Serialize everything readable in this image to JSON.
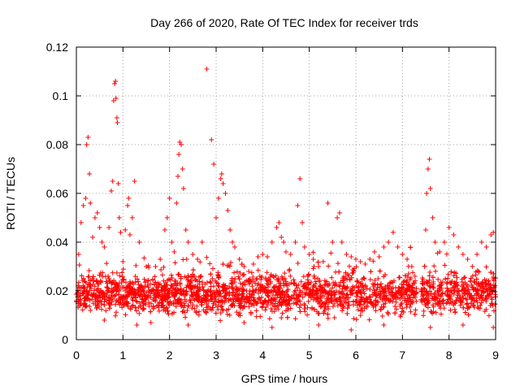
{
  "chart_data": {
    "type": "scatter",
    "title": "Day 266 of 2020, Rate Of TEC Index for receiver trds",
    "xlabel": "GPS time / hours",
    "ylabel": "ROTI / TECUs",
    "xlim": [
      0,
      9
    ],
    "ylim": [
      0,
      0.12
    ],
    "x_ticks": [
      "0",
      "1",
      "2",
      "3",
      "4",
      "5",
      "6",
      "7",
      "8",
      "9"
    ],
    "y_ticks": [
      "0",
      "0.02",
      "0.04",
      "0.06",
      "0.08",
      "0.1",
      "0.12"
    ],
    "grid": true,
    "marker": "+",
    "color": "#ff0000",
    "data_gap_hours": [
      7.3,
      7.4
    ],
    "series": [
      {
        "name": "ROTI",
        "points": [
          [
            0.05,
            0.035
          ],
          [
            0.1,
            0.048
          ],
          [
            0.15,
            0.055
          ],
          [
            0.2,
            0.058
          ],
          [
            0.22,
            0.08
          ],
          [
            0.25,
            0.083
          ],
          [
            0.28,
            0.068
          ],
          [
            0.3,
            0.056
          ],
          [
            0.35,
            0.042
          ],
          [
            0.4,
            0.05
          ],
          [
            0.45,
            0.052
          ],
          [
            0.5,
            0.046
          ],
          [
            0.55,
            0.04
          ],
          [
            0.6,
            0.038
          ],
          [
            0.7,
            0.046
          ],
          [
            0.75,
            0.061
          ],
          [
            0.78,
            0.065
          ],
          [
            0.8,
            0.098
          ],
          [
            0.82,
            0.105
          ],
          [
            0.84,
            0.106
          ],
          [
            0.85,
            0.099
          ],
          [
            0.87,
            0.091
          ],
          [
            0.88,
            0.089
          ],
          [
            0.9,
            0.064
          ],
          [
            0.92,
            0.05
          ],
          [
            0.95,
            0.044
          ],
          [
            1.0,
            0.032
          ],
          [
            1.05,
            0.045
          ],
          [
            1.1,
            0.055
          ],
          [
            1.12,
            0.058
          ],
          [
            1.15,
            0.043
          ],
          [
            1.2,
            0.05
          ],
          [
            1.25,
            0.065
          ],
          [
            1.35,
            0.04
          ],
          [
            1.5,
            0.03
          ],
          [
            1.7,
            0.03
          ],
          [
            1.8,
            0.033
          ],
          [
            1.9,
            0.045
          ],
          [
            1.95,
            0.05
          ],
          [
            2.0,
            0.058
          ],
          [
            2.05,
            0.04
          ],
          [
            2.1,
            0.036
          ],
          [
            2.15,
            0.056
          ],
          [
            2.18,
            0.067
          ],
          [
            2.2,
            0.076
          ],
          [
            2.22,
            0.081
          ],
          [
            2.25,
            0.08
          ],
          [
            2.28,
            0.07
          ],
          [
            2.3,
            0.062
          ],
          [
            2.35,
            0.045
          ],
          [
            2.4,
            0.04
          ],
          [
            2.5,
            0.035
          ],
          [
            2.6,
            0.033
          ],
          [
            2.7,
            0.04
          ],
          [
            2.8,
            0.111
          ],
          [
            2.9,
            0.082
          ],
          [
            2.95,
            0.072
          ],
          [
            3.0,
            0.05
          ],
          [
            3.05,
            0.058
          ],
          [
            3.1,
            0.066
          ],
          [
            3.12,
            0.068
          ],
          [
            3.15,
            0.064
          ],
          [
            3.2,
            0.06
          ],
          [
            3.25,
            0.053
          ],
          [
            3.3,
            0.045
          ],
          [
            3.35,
            0.04
          ],
          [
            3.4,
            0.038
          ],
          [
            3.5,
            0.033
          ],
          [
            3.6,
            0.03
          ],
          [
            3.7,
            0.028
          ],
          [
            3.8,
            0.031
          ],
          [
            3.9,
            0.034
          ],
          [
            4.0,
            0.035
          ],
          [
            4.1,
            0.034
          ],
          [
            4.2,
            0.04
          ],
          [
            4.3,
            0.046
          ],
          [
            4.35,
            0.048
          ],
          [
            4.4,
            0.042
          ],
          [
            4.45,
            0.04
          ],
          [
            4.5,
            0.036
          ],
          [
            4.6,
            0.035
          ],
          [
            4.7,
            0.04
          ],
          [
            4.75,
            0.055
          ],
          [
            4.8,
            0.066
          ],
          [
            4.85,
            0.048
          ],
          [
            4.9,
            0.038
          ],
          [
            5.0,
            0.035
          ],
          [
            5.1,
            0.03
          ],
          [
            5.2,
            0.03
          ],
          [
            5.3,
            0.032
          ],
          [
            5.4,
            0.056
          ],
          [
            5.5,
            0.04
          ],
          [
            5.6,
            0.05
          ],
          [
            5.65,
            0.052
          ],
          [
            5.7,
            0.04
          ],
          [
            5.8,
            0.035
          ],
          [
            5.9,
            0.034
          ],
          [
            6.0,
            0.033
          ],
          [
            6.1,
            0.032
          ],
          [
            6.2,
            0.031
          ],
          [
            6.3,
            0.033
          ],
          [
            6.4,
            0.036
          ],
          [
            6.5,
            0.034
          ],
          [
            6.6,
            0.038
          ],
          [
            6.7,
            0.04
          ],
          [
            6.8,
            0.044
          ],
          [
            6.9,
            0.038
          ],
          [
            7.0,
            0.035
          ],
          [
            7.1,
            0.033
          ],
          [
            7.2,
            0.03
          ],
          [
            7.5,
            0.045
          ],
          [
            7.52,
            0.06
          ],
          [
            7.55,
            0.07
          ],
          [
            7.58,
            0.074
          ],
          [
            7.6,
            0.062
          ],
          [
            7.65,
            0.05
          ],
          [
            7.7,
            0.04
          ],
          [
            7.8,
            0.036
          ],
          [
            7.9,
            0.04
          ],
          [
            8.0,
            0.046
          ],
          [
            8.1,
            0.043
          ],
          [
            8.2,
            0.038
          ],
          [
            8.3,
            0.035
          ],
          [
            8.4,
            0.033
          ],
          [
            8.5,
            0.03
          ],
          [
            8.6,
            0.035
          ],
          [
            8.7,
            0.04
          ],
          [
            8.8,
            0.038
          ],
          [
            8.9,
            0.043
          ],
          [
            8.95,
            0.044
          ],
          [
            0.3,
            0.012
          ],
          [
            0.6,
            0.008
          ],
          [
            1.3,
            0.006
          ],
          [
            1.6,
            0.007
          ],
          [
            2.4,
            0.006
          ],
          [
            3.6,
            0.007
          ],
          [
            4.2,
            0.005
          ],
          [
            5.2,
            0.006
          ],
          [
            5.9,
            0.004
          ],
          [
            6.6,
            0.006
          ],
          [
            7.6,
            0.005
          ],
          [
            8.3,
            0.006
          ],
          [
            8.95,
            0.005
          ]
        ],
        "band": {
          "description": "dense baseline of samples between the following bounds",
          "x_range": [
            0,
            9
          ],
          "gap": [
            7.3,
            7.4
          ],
          "typical_min": 0.007,
          "typical_max": 0.028
        }
      }
    ]
  }
}
